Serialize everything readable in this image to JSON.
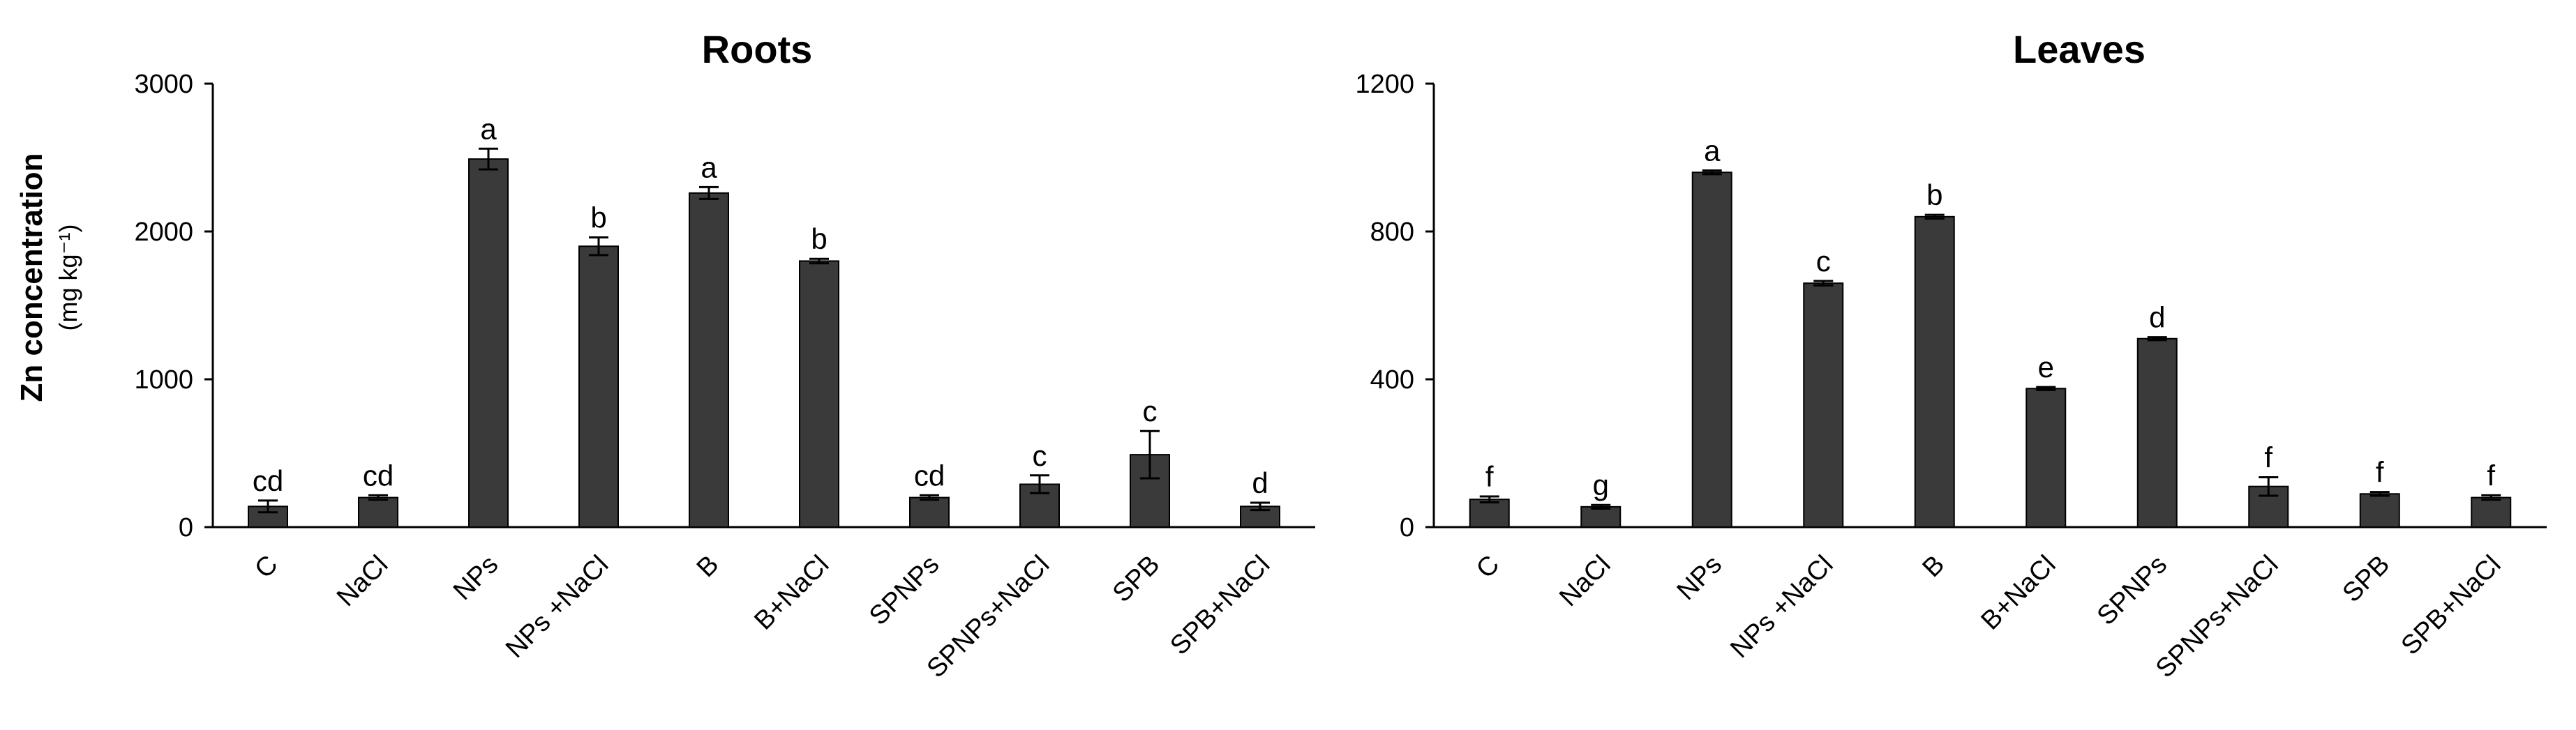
{
  "y_axis_title": "Zn concentration",
  "y_axis_unit": "(mg kg⁻¹)",
  "chart_data": [
    {
      "type": "bar",
      "title": "Roots",
      "ylabel": "Zn concentration (mg kg⁻¹)",
      "ylim": [
        0,
        3000
      ],
      "yticks": [
        "0",
        "1000",
        "2000",
        "3000"
      ],
      "categories": [
        "C",
        "NaCl",
        "NPs",
        "NPs +NaCl",
        "B",
        "B+NaCl",
        "SPNPs",
        "SPNPs+NaCl",
        "SPB",
        "SPB+NaCl"
      ],
      "values": [
        140,
        200,
        2490,
        1900,
        2260,
        1800,
        200,
        290,
        490,
        140
      ],
      "errors": [
        40,
        15,
        70,
        60,
        40,
        15,
        15,
        60,
        160,
        25
      ],
      "letters": [
        "cd",
        "cd",
        "a",
        "b",
        "a",
        "b",
        "cd",
        "c",
        "c",
        "d"
      ],
      "bar_color": "#3a3a3a"
    },
    {
      "type": "bar",
      "title": "Leaves",
      "ylim": [
        0,
        1200
      ],
      "yticks": [
        "0",
        "400",
        "800",
        "1200"
      ],
      "categories": [
        "C",
        "NaCl",
        "NPs",
        "NPs +NaCl",
        "B",
        "B+NaCl",
        "SPNPs",
        "SPNPs+NaCl",
        "SPB",
        "SPB+NaCl"
      ],
      "values": [
        75,
        55,
        960,
        660,
        840,
        375,
        510,
        110,
        90,
        80
      ],
      "errors": [
        8,
        5,
        5,
        6,
        5,
        4,
        4,
        25,
        5,
        6
      ],
      "letters": [
        "f",
        "g",
        "a",
        "c",
        "b",
        "e",
        "d",
        "f",
        "f",
        "f"
      ],
      "bar_color": "#3a3a3a"
    }
  ]
}
